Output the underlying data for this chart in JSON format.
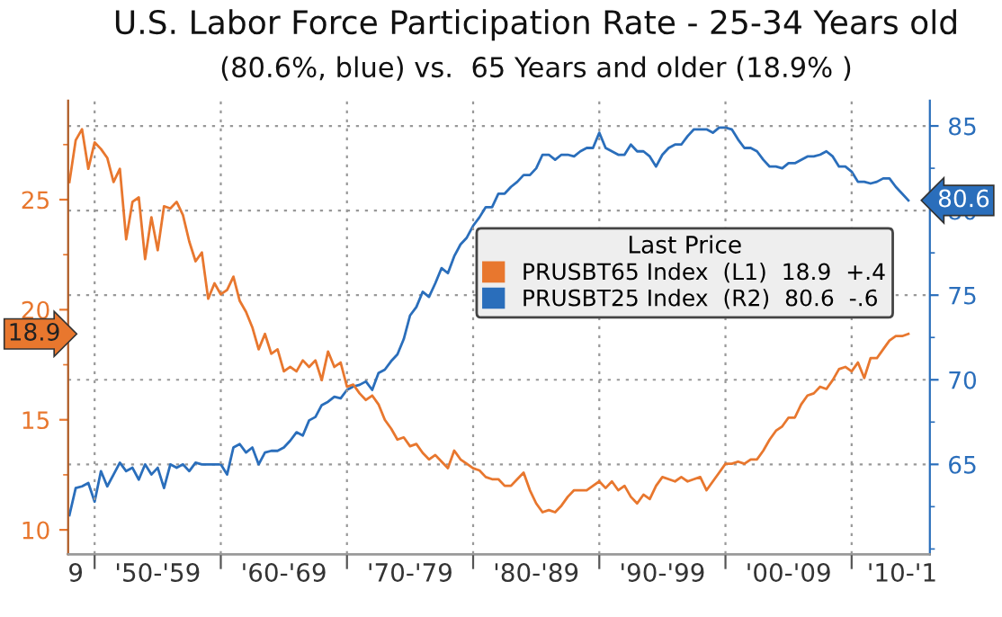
{
  "chart_data": {
    "type": "line",
    "title": "U.S. Labor Force Participation Rate - 25-34 Years old",
    "subtitle": "(80.6%, blue) vs.  65 Years and older (18.9% )",
    "legend_title": "Last Price",
    "legend": "right",
    "grid": true,
    "line_style": "solid",
    "categories": [
      null,
      "9",
      null,
      null,
      null,
      null,
      null,
      null,
      null,
      null,
      null,
      null,
      null,
      null,
      "'50-'59",
      null,
      null,
      null,
      null,
      null,
      null,
      null,
      null,
      null,
      null,
      null,
      null,
      null,
      null,
      null,
      null,
      null,
      null,
      null,
      "'60-'69",
      null,
      null,
      null,
      null,
      null,
      null,
      null,
      null,
      null,
      null,
      null,
      null,
      null,
      null,
      null,
      null,
      null,
      null,
      null,
      "'70-'79",
      null,
      null,
      null,
      null,
      null,
      null,
      null,
      null,
      null,
      null,
      null,
      null,
      null,
      null,
      null,
      null,
      null,
      null,
      null,
      "'80-'89",
      null,
      null,
      null,
      null,
      null,
      null,
      null,
      null,
      null,
      null,
      null,
      null,
      null,
      null,
      null,
      null,
      null,
      null,
      null,
      "'90-'99",
      null,
      null,
      null,
      null,
      null,
      null,
      null,
      null,
      null,
      null,
      null,
      null,
      null,
      null,
      null,
      null,
      null,
      null,
      null,
      "'00-'09",
      null,
      null,
      null,
      null,
      null,
      null,
      null,
      null,
      null,
      null,
      null,
      null,
      null,
      null,
      null,
      null,
      null,
      "'10-'1",
      null
    ],
    "ylim": [
      8.9,
      29.5
    ],
    "yticks": [
      10,
      {
        "value": 12.5,
        "label": null
      },
      15,
      {
        "value": 17.5,
        "label": null
      },
      20,
      {
        "value": 22.5,
        "label": null
      },
      25,
      {
        "value": 27.5,
        "label": null
      }
    ],
    "y2lim": [
      59.7,
      86.5
    ],
    "y2ticks": [
      {
        "value": 60,
        "label": null
      },
      {
        "value": 62.5,
        "label": null
      },
      65,
      {
        "value": 67.5,
        "label": null
      },
      70,
      {
        "value": 72.5,
        "label": null
      },
      75,
      {
        "value": 77.5,
        "label": null
      },
      80,
      {
        "value": 82.5,
        "label": null
      },
      85
    ],
    "annotations": [
      "18.9",
      "80.6"
    ],
    "series": [
      {
        "name": "PRUSBT65 Index  (L1)  18.9  +.4",
        "color": "#e8772e",
        "axis": "y",
        "values": [
          25.8,
          27.7,
          28.2,
          26.4,
          27.6,
          27.3,
          26.9,
          25.8,
          26.4,
          23.2,
          24.9,
          25.1,
          22.3,
          24.2,
          22.7,
          24.7,
          24.6,
          24.9,
          24.3,
          23.1,
          22.2,
          22.6,
          20.5,
          21.2,
          20.7,
          20.9,
          21.5,
          20.4,
          19.9,
          19.2,
          18.2,
          18.9,
          18.0,
          18.2,
          17.2,
          17.4,
          17.2,
          17.7,
          17.4,
          17.7,
          16.8,
          18.1,
          17.4,
          17.6,
          16.5,
          16.6,
          16.2,
          15.9,
          16.1,
          15.7,
          15.0,
          14.6,
          14.1,
          14.2,
          13.8,
          13.9,
          13.5,
          13.2,
          13.4,
          13.1,
          12.8,
          13.6,
          13.2,
          13.0,
          12.8,
          12.7,
          12.4,
          12.3,
          12.3,
          12.0,
          12.0,
          12.3,
          12.6,
          11.8,
          11.2,
          10.8,
          10.9,
          10.8,
          11.1,
          11.5,
          11.8,
          11.8,
          11.8,
          12.0,
          12.2,
          11.9,
          12.2,
          11.8,
          12.0,
          11.5,
          11.2,
          11.6,
          11.4,
          12.0,
          12.4,
          12.3,
          12.2,
          12.4,
          12.2,
          12.3,
          12.4,
          11.8,
          12.2,
          12.6,
          13.0,
          13.0,
          13.1,
          13.0,
          13.2,
          13.2,
          13.6,
          14.1,
          14.5,
          14.7,
          15.1,
          15.1,
          15.7,
          16.1,
          16.2,
          16.5,
          16.4,
          16.8,
          17.3,
          17.4,
          17.2,
          17.6,
          16.9,
          17.8,
          17.8,
          18.2,
          18.6,
          18.8,
          18.8,
          18.9
        ]
      },
      {
        "name": "PRUSBT25 Index  (R2)  80.6  -.6",
        "color": "#2a6ebb",
        "axis": "y2",
        "values": [
          62.0,
          63.6,
          63.7,
          63.9,
          62.8,
          64.6,
          63.7,
          64.4,
          65.1,
          64.6,
          64.8,
          64.1,
          65.0,
          64.4,
          64.8,
          63.6,
          65.0,
          64.8,
          65.0,
          64.6,
          65.1,
          65.0,
          65.0,
          65.0,
          65.0,
          64.4,
          66.0,
          66.2,
          65.7,
          66.0,
          65.0,
          65.7,
          65.8,
          65.8,
          66.0,
          66.4,
          66.9,
          66.7,
          67.6,
          67.8,
          68.5,
          68.7,
          69.0,
          68.9,
          69.4,
          69.6,
          69.7,
          69.9,
          69.4,
          70.4,
          70.6,
          71.1,
          71.5,
          72.4,
          73.8,
          74.3,
          75.2,
          74.9,
          75.7,
          76.6,
          76.3,
          77.3,
          78.0,
          78.4,
          79.1,
          79.6,
          80.2,
          80.2,
          81.0,
          81.0,
          81.4,
          81.7,
          82.1,
          82.1,
          82.5,
          83.3,
          83.3,
          83.0,
          83.3,
          83.3,
          83.2,
          83.5,
          83.7,
          83.7,
          84.6,
          83.7,
          83.5,
          83.3,
          83.3,
          83.9,
          83.5,
          83.5,
          83.2,
          82.6,
          83.3,
          83.7,
          83.9,
          83.9,
          84.4,
          84.8,
          84.8,
          84.8,
          84.6,
          84.9,
          84.9,
          84.8,
          84.2,
          83.7,
          83.7,
          83.5,
          83.0,
          82.6,
          82.6,
          82.5,
          82.8,
          82.8,
          83.0,
          83.2,
          83.2,
          83.3,
          83.5,
          83.2,
          82.6,
          82.6,
          82.3,
          81.7,
          81.7,
          81.6,
          81.7,
          81.9,
          81.9,
          81.4,
          81.0,
          80.6
        ]
      }
    ]
  }
}
